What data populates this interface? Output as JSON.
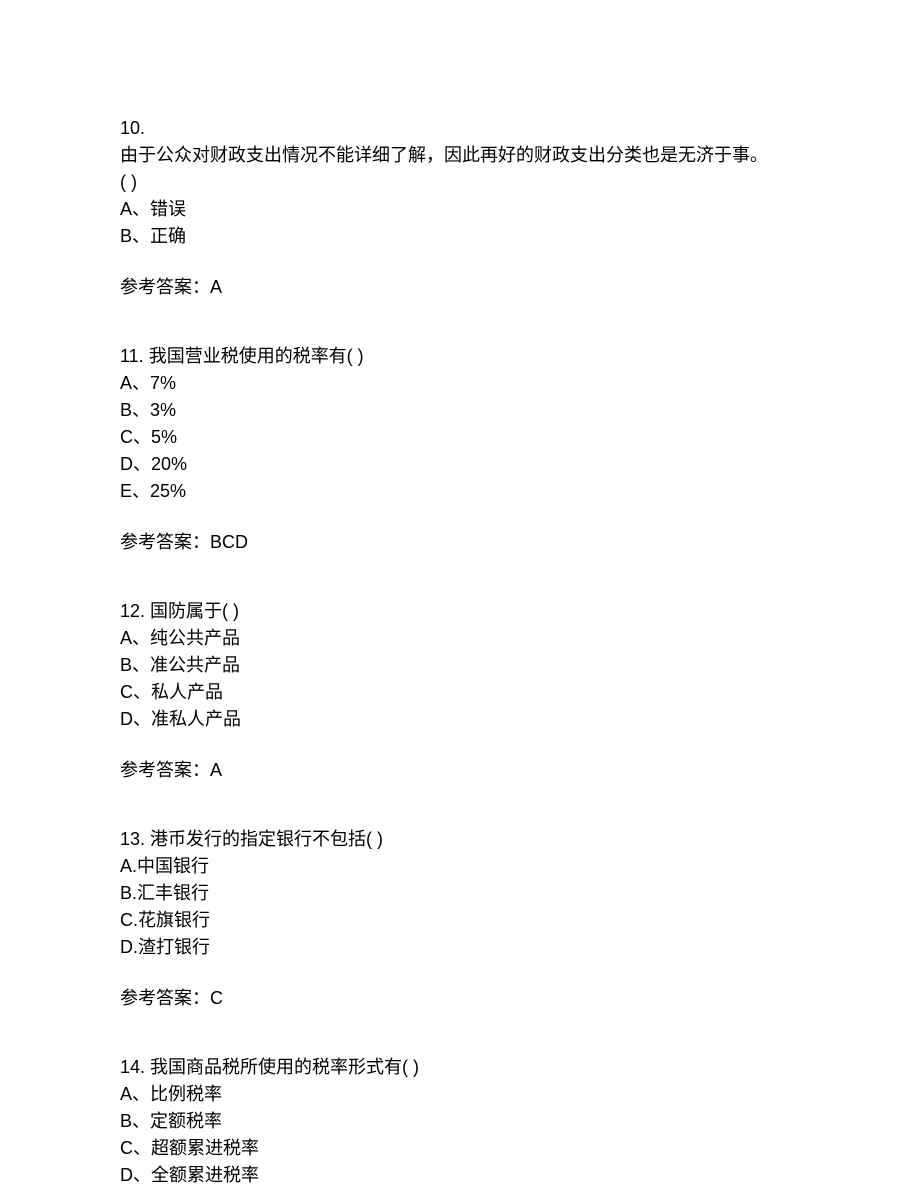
{
  "questions": [
    {
      "number": "10.",
      "text_line1": "由于公众对财政支出情况不能详细了解，因此再好的财政支出分类也是无济于事。",
      "text_line2": "(   )",
      "options": [
        "A、错误",
        "B、正确"
      ],
      "answer_label": "参考答案：",
      "answer_value": "A"
    },
    {
      "number": "11.",
      "text": "  我国营业税使用的税率有(   )",
      "options": [
        "A、7%",
        "B、3%",
        "C、5%",
        "D、20%",
        "E、25%"
      ],
      "answer_label": "参考答案：",
      "answer_value": "BCD"
    },
    {
      "number": "12.",
      "text": "  国防属于(   )",
      "options": [
        "A、纯公共产品",
        "B、准公共产品",
        "C、私人产品",
        "D、准私人产品"
      ],
      "answer_label": "参考答案：",
      "answer_value": "A"
    },
    {
      "number": "13.",
      "text": "  港币发行的指定银行不包括(   )",
      "options": [
        "A.中国银行",
        "B.汇丰银行",
        "C.花旗银行",
        "D.渣打银行"
      ],
      "answer_label": "参考答案：",
      "answer_value": "C"
    },
    {
      "number": "14.",
      "text": "  我国商品税所使用的税率形式有(   )",
      "options": [
        "A、比例税率",
        "B、定额税率",
        "C、超额累进税率",
        "D、全额累进税率"
      ],
      "answer_label": "",
      "answer_value": ""
    }
  ]
}
